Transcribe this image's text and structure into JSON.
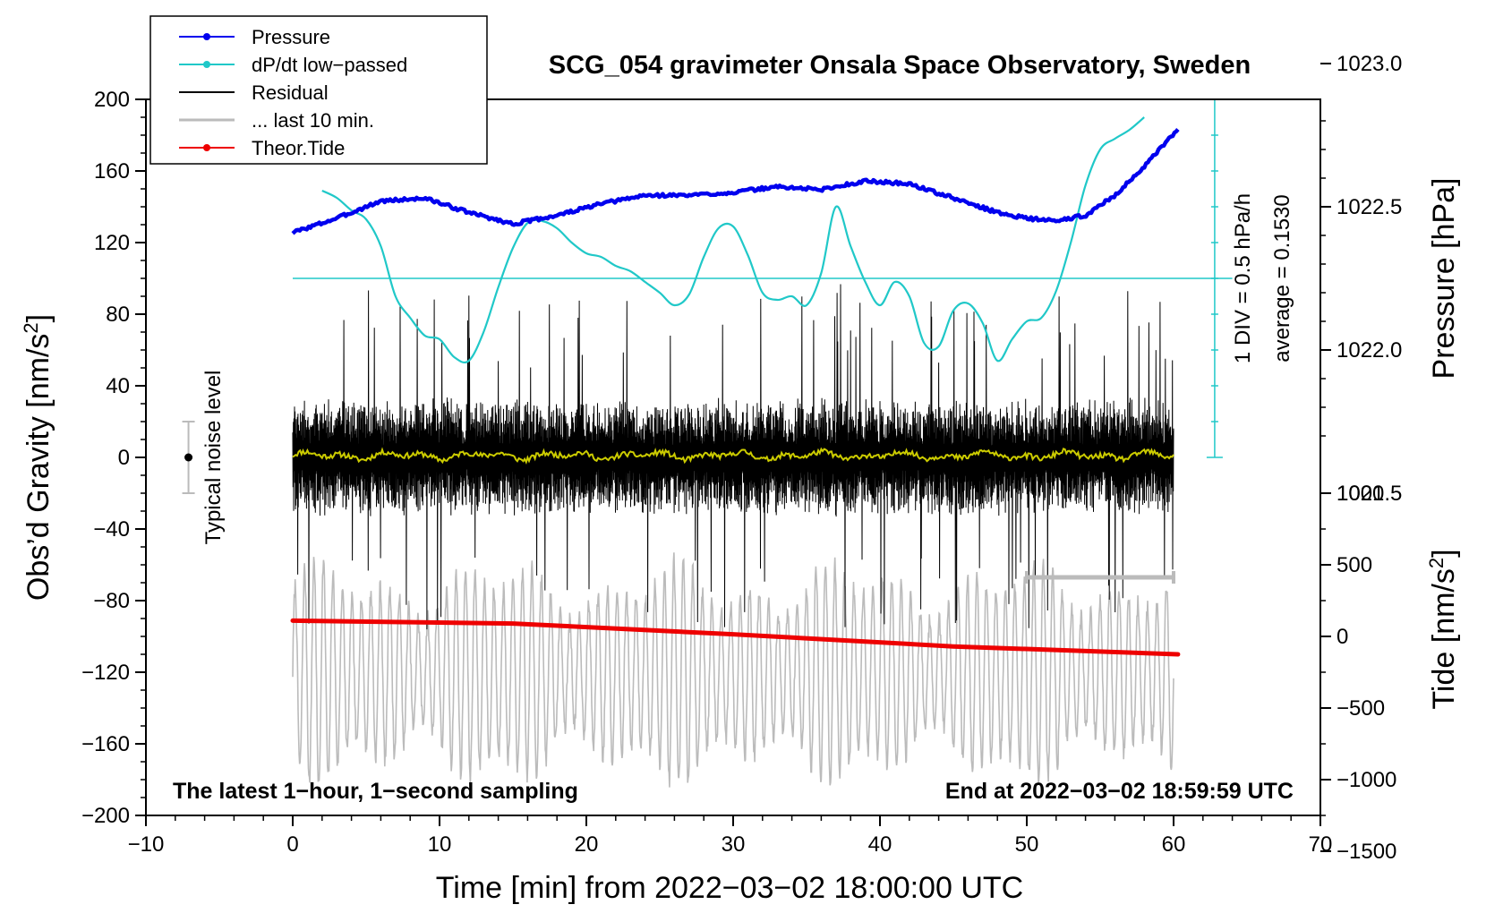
{
  "colors": {
    "pressure": "#0000ee",
    "dpdt": "#20c8c8",
    "residual": "#000000",
    "last10": "#bbbbbb",
    "tide": "#ee0000",
    "smooth": "#cccc00"
  },
  "chart_data": {
    "type": "line",
    "title": "SCG_054 gravimeter Onsala Space Observatory, Sweden",
    "xlabel": "Time [min] from 2022−03−02 18:00:00 UTC",
    "ylabel": "Obs’d Gravity [nm/s²]",
    "xlim": [
      -10,
      70
    ],
    "ylim": [
      -200,
      200
    ],
    "x_ticks": [
      "−10",
      "0",
      "10",
      "20",
      "30",
      "40",
      "50",
      "60",
      "70"
    ],
    "y_ticks": [
      "200",
      "160",
      "120",
      "80",
      "40",
      "0",
      "−40",
      "−80",
      "−120",
      "−160",
      "−200"
    ],
    "pressure_axis": {
      "label": "Pressure [hPa]",
      "ticks": [
        "1023.0",
        "1022.5",
        "1022.0",
        "1021.5"
      ]
    },
    "tide_axis": {
      "label": "Tide [nm/s²]",
      "ticks": [
        "1000",
        "500",
        "0",
        "−500",
        "−1000",
        "−1500"
      ]
    },
    "legend": [
      {
        "label": "Pressure",
        "key": "pressure",
        "marker": true
      },
      {
        "label": "dP/dt low−passed",
        "key": "dpdt",
        "marker": true
      },
      {
        "label": "Residual",
        "key": "residual",
        "marker": false
      },
      {
        "label": "... last 10 min.",
        "key": "last10",
        "marker": false
      },
      {
        "label": "Theor.Tide",
        "key": "tide",
        "marker": true
      }
    ],
    "annotations": {
      "noise_level": "Typical noise level",
      "div_scale": "1 DIV = 0.5 hPa/h",
      "average": "average = 0.1530",
      "bottom_left": "The latest 1−hour, 1−second sampling",
      "bottom_right": "End at 2022−03−02 18:59:59 UTC"
    },
    "series": [
      {
        "name": "Pressure",
        "unit": "hPa",
        "x": [
          0,
          3,
          6,
          9,
          12,
          15,
          18,
          21,
          24,
          27,
          30,
          33,
          36,
          39,
          42,
          45,
          48,
          50,
          52,
          54,
          56,
          58,
          60.3
        ],
        "values": [
          1022.41,
          1022.46,
          1022.52,
          1022.53,
          1022.48,
          1022.44,
          1022.47,
          1022.51,
          1022.54,
          1022.54,
          1022.55,
          1022.57,
          1022.56,
          1022.59,
          1022.58,
          1022.53,
          1022.48,
          1022.46,
          1022.45,
          1022.47,
          1022.54,
          1022.64,
          1022.77
        ]
      },
      {
        "name": "dP/dt low−passed",
        "unit": "nm/s2 (plot units)",
        "x": [
          2,
          3,
          4,
          5,
          6,
          7,
          8,
          9,
          10,
          11,
          12,
          13,
          14,
          15,
          16,
          17,
          18,
          19,
          20,
          21,
          22,
          23,
          24,
          25,
          26,
          27,
          28,
          29,
          30,
          31,
          32,
          33,
          34,
          35,
          36,
          37,
          38,
          39,
          40,
          41,
          42,
          43,
          44,
          45,
          46,
          47,
          48,
          49,
          50,
          51,
          52,
          53,
          54,
          55,
          56,
          57,
          58
        ],
        "values": [
          149,
          145,
          138,
          133,
          118,
          90,
          78,
          68,
          66,
          56,
          54,
          70,
          95,
          117,
          131,
          132,
          128,
          120,
          114,
          112,
          107,
          104,
          98,
          92,
          85,
          91,
          112,
          128,
          129,
          113,
          92,
          88,
          90,
          85,
          103,
          140,
          118,
          98,
          85,
          98,
          90,
          64,
          62,
          82,
          86,
          75,
          54,
          66,
          76,
          78,
          93,
          120,
          152,
          172,
          178,
          183,
          190
        ]
      },
      {
        "name": "Residual",
        "unit": "nm/s2",
        "x_range": [
          0,
          60
        ],
        "amplitude_typical": 30,
        "amplitude_peak": 95
      },
      {
        "name": "... last 10 min.",
        "unit": "nm/s2",
        "x_range": [
          0,
          60
        ],
        "center": -120,
        "amplitude_typical": 40,
        "amplitude_peak": 80
      },
      {
        "name": "Theor.Tide",
        "unit": "nm/s2 (tide axis)",
        "x": [
          0,
          15,
          30,
          45,
          60.3
        ],
        "values": [
          110,
          90,
          15,
          -70,
          -125
        ]
      }
    ],
    "noise_bar": {
      "center": 0,
      "half_range": 20
    },
    "last10_bar": {
      "x": [
        50,
        60
      ],
      "y": -67
    },
    "dpdt_zero_line": 100
  }
}
